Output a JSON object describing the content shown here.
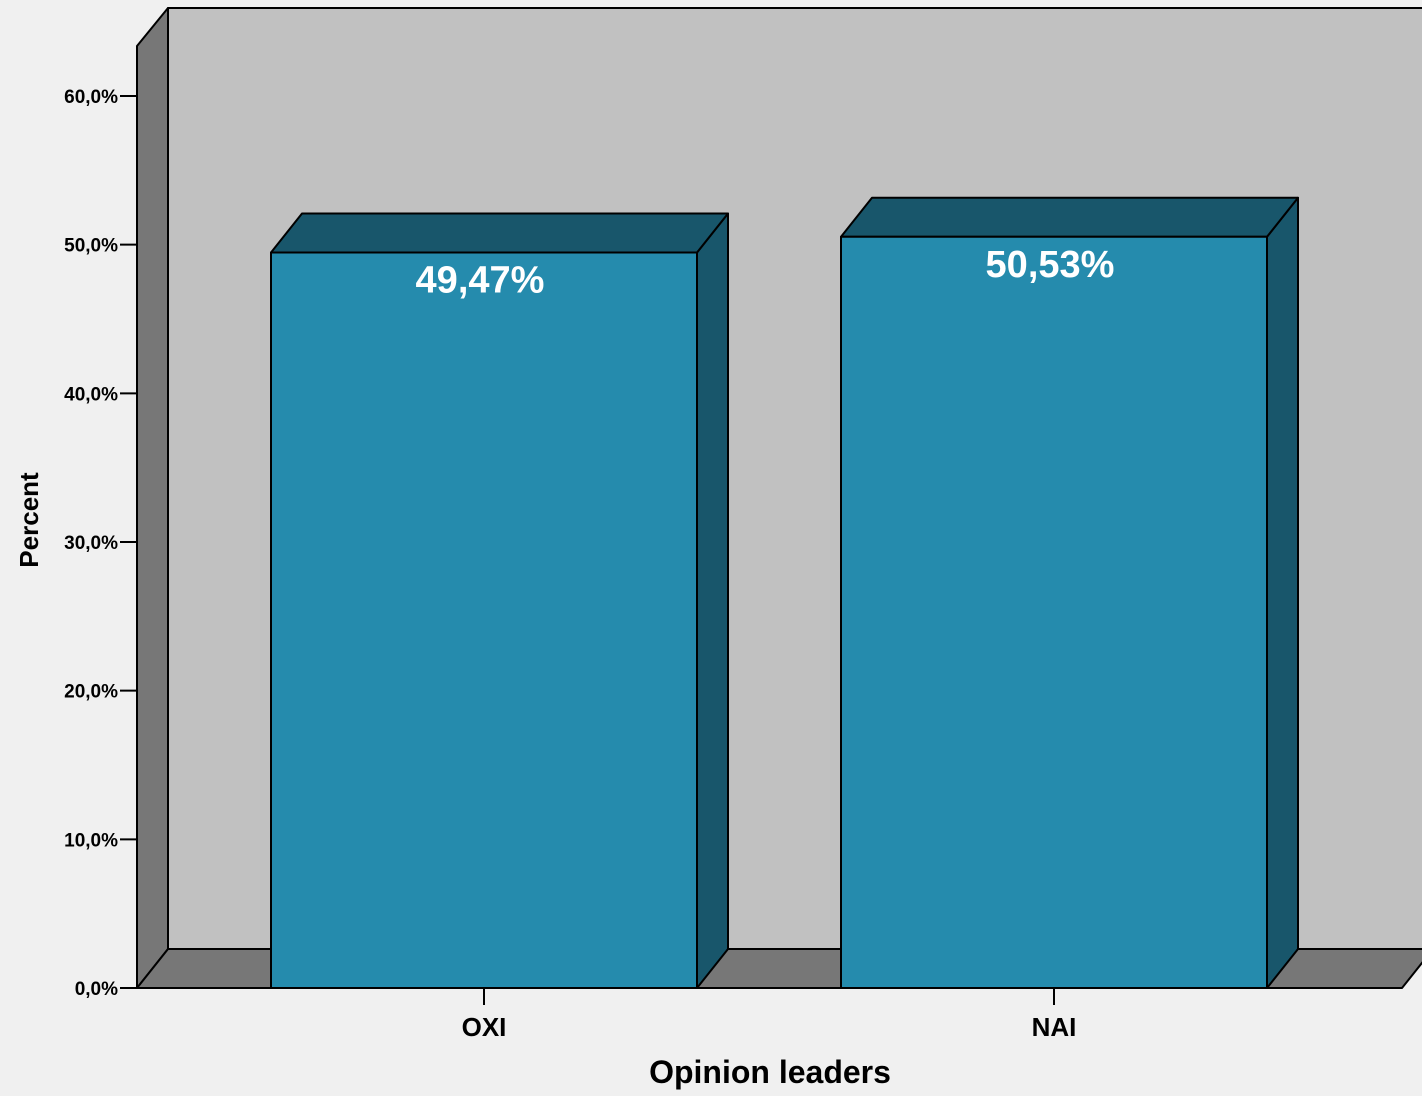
{
  "chart_data": {
    "type": "bar",
    "style": "3d",
    "categories": [
      "OXI",
      "NAI"
    ],
    "values": [
      49.47,
      50.53
    ],
    "data_labels": [
      "49,47%",
      "50,53%"
    ],
    "title": "",
    "xlabel": "Opinion leaders",
    "ylabel": "Percent",
    "ylim": [
      0,
      60
    ],
    "yticks": [
      0,
      10,
      20,
      30,
      40,
      50,
      60
    ],
    "ytick_labels": [
      "0,0%",
      "10,0%",
      "20,0%",
      "30,0%",
      "40,0%",
      "50,0%",
      "60,0%"
    ],
    "grid": false,
    "legend": "none",
    "colors": {
      "bar_front": "#258bad",
      "bar_top_side": "#18566b",
      "back_wall": "#c1c1c1",
      "side_wall": "#777777",
      "floor": "#777777",
      "background": "#f0f0f0",
      "data_label": "#ffffff"
    }
  }
}
